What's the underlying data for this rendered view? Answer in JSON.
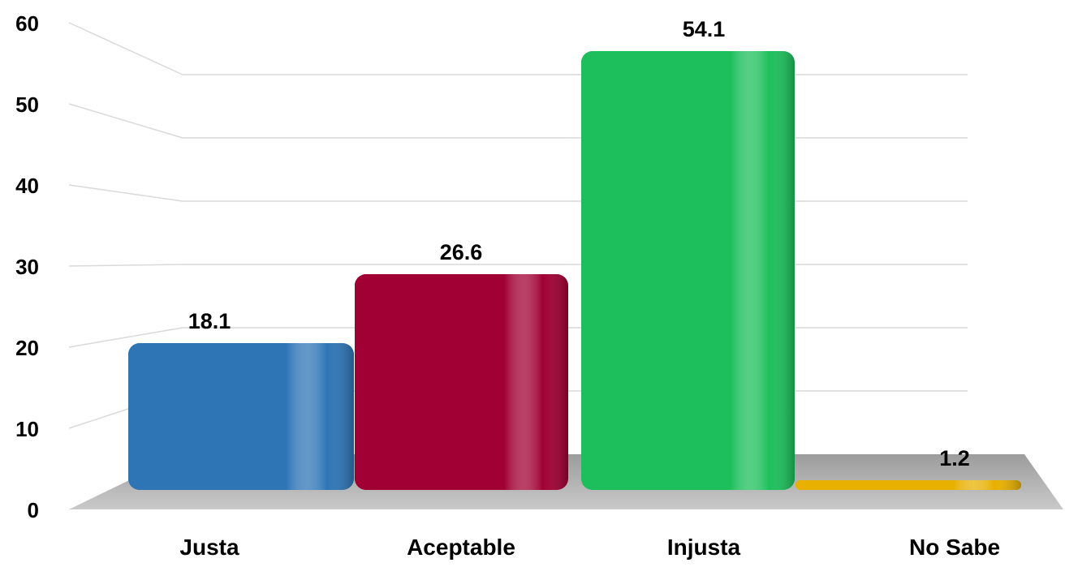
{
  "chart_data": {
    "type": "bar",
    "title": "",
    "xlabel": "",
    "ylabel": "",
    "categories": [
      "Justa",
      "Aceptable",
      "Injusta",
      "No Sabe"
    ],
    "values": [
      18.1,
      26.6,
      54.1,
      1.2
    ],
    "value_labels": [
      "18.1",
      "26.6",
      "54.1",
      "1.2"
    ],
    "ylim": [
      0,
      60
    ],
    "yticks": [
      0,
      10,
      20,
      30,
      40,
      50,
      60
    ],
    "grid": true,
    "style": "3d",
    "colors": [
      "#2e75b6",
      "#a00034",
      "#1cbf5b",
      "#e8b000"
    ]
  }
}
